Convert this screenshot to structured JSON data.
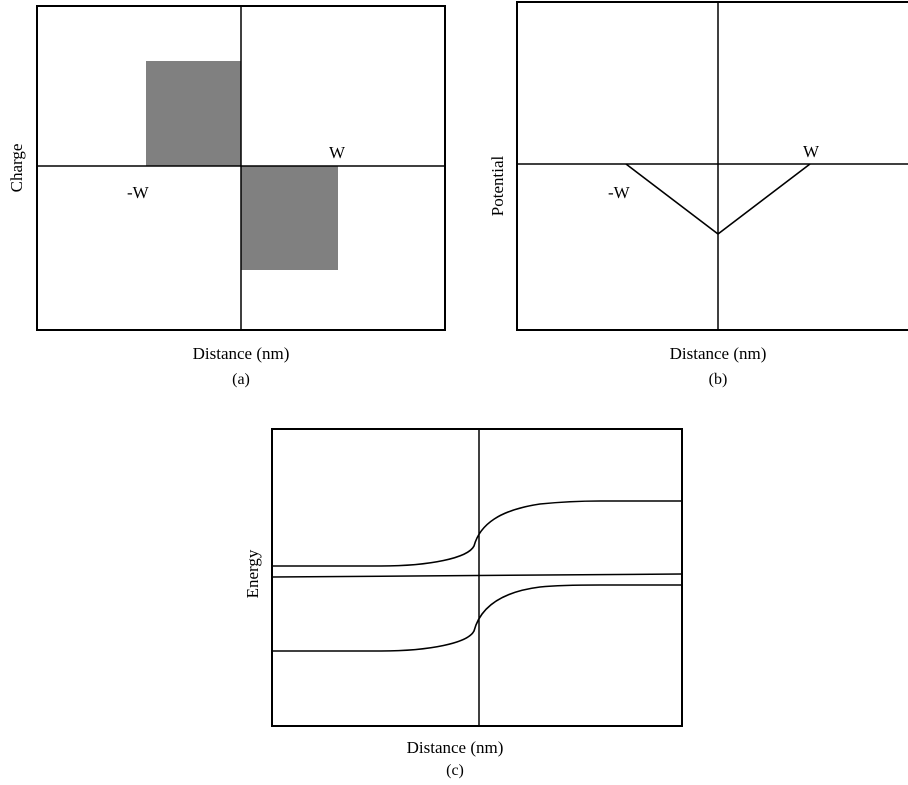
{
  "panel_a": {
    "y_label": "Charge",
    "x_label": "Distance (nm)",
    "caption": "(a)",
    "left_marker": "-W",
    "right_marker": "W",
    "fill_color": "#808080"
  },
  "panel_b": {
    "y_label": "Potential",
    "x_label": "Distance (nm)",
    "caption": "(b)",
    "left_marker": "-W",
    "right_marker": "W"
  },
  "panel_c": {
    "y_label": "Energy",
    "x_label": "Distance (nm)",
    "caption": "(c)"
  }
}
